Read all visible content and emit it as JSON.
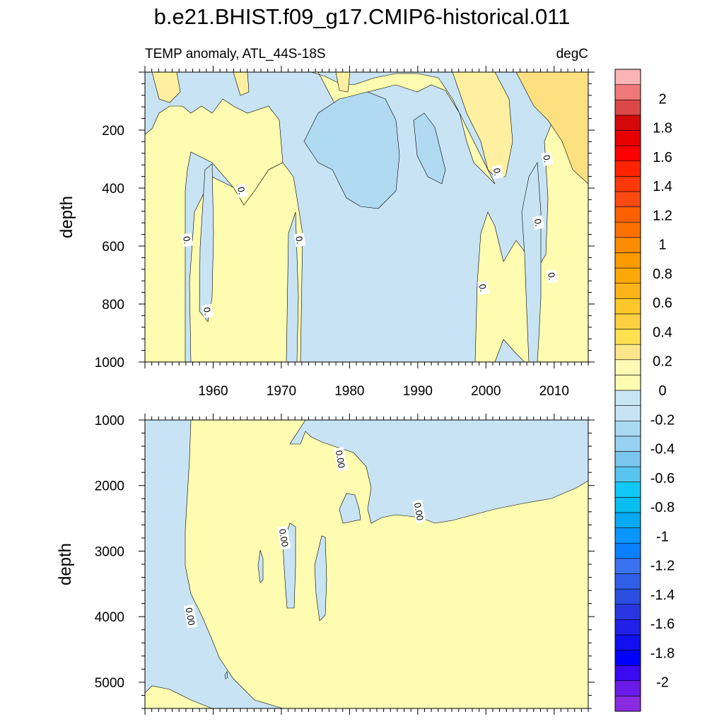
{
  "chart_data": {
    "type": "contour",
    "title": "b.e21.BHIST.f09_g17.CMIP6-historical.011",
    "units": "degC",
    "panels": [
      {
        "name": "upper",
        "subtitle_left": "TEMP anomaly, ATL_44S-18S",
        "subtitle_right": "degC",
        "ylabel": "depth",
        "xlim": [
          1950,
          2015
        ],
        "ylim": [
          0,
          1000
        ],
        "y_reversed": true,
        "x_ticks": [
          "1960",
          "1970",
          "1980",
          "1990",
          "2000",
          "2010"
        ],
        "x_tick_values": [
          1960,
          1970,
          1980,
          1990,
          2000,
          2010
        ],
        "y_ticks": [
          "200",
          "400",
          "600",
          "800",
          "1000"
        ],
        "y_tick_values": [
          200,
          400,
          600,
          800,
          1000
        ],
        "contour_labels": [
          {
            "text": "0.",
            "x": 1956,
            "y": 580
          },
          {
            "text": "0.",
            "x": 1959,
            "y": 825
          },
          {
            "text": "0.",
            "x": 1964,
            "y": 410
          },
          {
            "text": "0.",
            "x": 1972.5,
            "y": 580
          },
          {
            "text": "0.",
            "x": 2001.5,
            "y": 345
          },
          {
            "text": "0.",
            "x": 2008.8,
            "y": 300
          },
          {
            "text": "0.",
            "x": 2007.5,
            "y": 520
          },
          {
            "text": "0.",
            "x": 1999.4,
            "y": 745
          },
          {
            "text": "0.",
            "x": 2009.5,
            "y": 705
          }
        ]
      },
      {
        "name": "lower",
        "ylabel": "depth",
        "xlim": [
          1950,
          2015
        ],
        "ylim": [
          1000,
          5400
        ],
        "y_reversed": true,
        "y_ticks": [
          "1000",
          "2000",
          "3000",
          "4000",
          "5000"
        ],
        "y_tick_values": [
          1000,
          2000,
          3000,
          4000,
          5000
        ],
        "contour_labels": [
          {
            "text": "0.00",
            "x": 1978.5,
            "y": 1600
          },
          {
            "text": "0.00",
            "x": 1990,
            "y": 2400
          },
          {
            "text": "0.00",
            "x": 1970.2,
            "y": 2800
          },
          {
            "text": "0.00",
            "x": 1956.5,
            "y": 4000
          }
        ]
      }
    ],
    "colorbar": {
      "labels": [
        "2",
        "1.8",
        "1.6",
        "1.4",
        "1.2",
        "1",
        "0.8",
        "0.6",
        "0.4",
        "0.2",
        "0",
        "-0.2",
        "-0.4",
        "-0.6",
        "-0.8",
        "-1",
        "-1.2",
        "-1.4",
        "-1.6",
        "-1.8",
        "-2"
      ],
      "label_values": [
        2,
        1.8,
        1.6,
        1.4,
        1.2,
        1,
        0.8,
        0.6,
        0.4,
        0.2,
        0,
        -0.2,
        -0.4,
        -0.6,
        -0.8,
        -1,
        -1.2,
        -1.4,
        -1.6,
        -1.8,
        -2
      ],
      "min": -2.2,
      "max": 2.2,
      "step": 0.1,
      "colors": [
        "#8a2be2",
        "#6a1ae6",
        "#3a0af0",
        "#0000ff",
        "#1010f0",
        "#2020e8",
        "#2a36e0",
        "#2b4ee0",
        "#3060e8",
        "#3a72f0",
        "#0a80ff",
        "#0a96ff",
        "#08aaf5",
        "#08bef0",
        "#10c8f5",
        "#58c4f0",
        "#7ac6ee",
        "#98d2f2",
        "#a8daf2",
        "#c8e4f4",
        "#c8e6f4",
        "#fefcb0",
        "#fefab4",
        "#fee68a",
        "#fee050",
        "#fed040",
        "#fec828",
        "#fdb418",
        "#fca808",
        "#fc9a00",
        "#fc8c00",
        "#fc7000",
        "#fc6000",
        "#fc4a10",
        "#fc3808",
        "#fe2400",
        "#fe0000",
        "#e80000",
        "#d40808",
        "#dc4848",
        "#f07878",
        "#fcb4b4"
      ]
    },
    "field_colors": {
      "pos_weak": "#fefcb0",
      "pos_mid": "#fef0a0",
      "pos_strong": "#fde080",
      "neg_weak": "#c8e4f4",
      "neg_mid": "#b0daf2",
      "neg_strong": "#98cdea"
    }
  }
}
